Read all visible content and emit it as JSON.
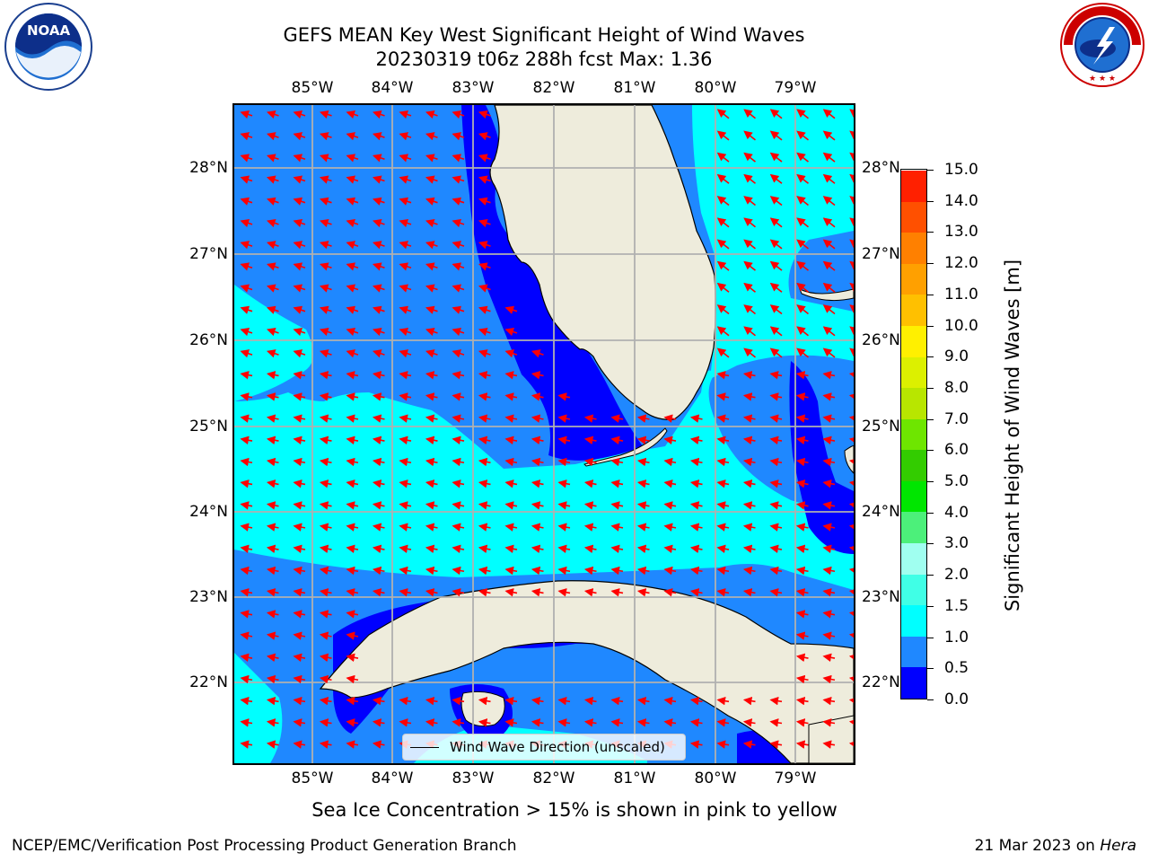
{
  "title": {
    "line1": "GEFS MEAN Key West Significant Height of Wind Waves",
    "line2": "20230319 t06z 288h fcst   Max: 1.36"
  },
  "longitude_ticks": [
    "85°W",
    "84°W",
    "83°W",
    "82°W",
    "81°W",
    "80°W",
    "79°W"
  ],
  "latitude_ticks": [
    "28°N",
    "27°N",
    "26°N",
    "25°N",
    "24°N",
    "23°N",
    "22°N"
  ],
  "legend": {
    "label": "Wind Wave Direction (unscaled)"
  },
  "colorbar": {
    "title": "Significant Height of Wind Waves [m]",
    "tick_labels": [
      "0.0",
      "0.5",
      "1.0",
      "1.5",
      "2.0",
      "3.0",
      "4.0",
      "5.0",
      "6.0",
      "7.0",
      "8.0",
      "9.0",
      "10.0",
      "11.0",
      "12.0",
      "13.0",
      "14.0",
      "15.0"
    ],
    "colors": [
      "#0000ff",
      "#1f88ff",
      "#00ffff",
      "#40ffe6",
      "#a0fff0",
      "#4cf07a",
      "#00e600",
      "#33cc00",
      "#6ee600",
      "#b8e600",
      "#dcf000",
      "#fff000",
      "#ffc000",
      "#ffa000",
      "#ff8000",
      "#ff5000",
      "#ff2000"
    ]
  },
  "map": {
    "land_color": "#eeecdc",
    "arrow_color": "#ff0000",
    "grid_color": "#b0b0b0",
    "lon_range": [
      -86.0,
      -78.3
    ],
    "lat_range": [
      21.0,
      28.8
    ]
  },
  "sea_ice_note": "Sea Ice Concentration > 15% is shown in pink to yellow",
  "footer": {
    "left": "NCEP/EMC/Verification Post Processing Product Generation Branch",
    "right_date": "21 Mar 2023 on ",
    "right_host": "Hera"
  },
  "logos": {
    "left": "NOAA",
    "right": "NATIONAL WEATHER SERVICE"
  }
}
